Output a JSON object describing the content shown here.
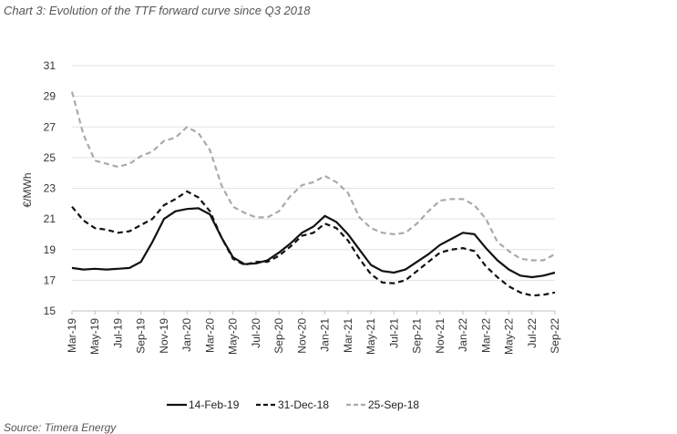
{
  "caption": "Chart 3: Evolution of the TTF forward curve since Q3 2018",
  "source": "Source: Timera Energy",
  "chart_data": {
    "type": "line",
    "title": "Chart 3: Evolution of the TTF forward curve since Q3 2018",
    "ylabel": "€/MWh",
    "xlabel": "",
    "ylim": [
      15,
      31
    ],
    "yticks": [
      15,
      17,
      19,
      21,
      23,
      25,
      27,
      29,
      31
    ],
    "grid": "horizontal",
    "legend_position": "bottom",
    "x": [
      "Mar-19",
      "Apr-19",
      "May-19",
      "Jun-19",
      "Jul-19",
      "Aug-19",
      "Sep-19",
      "Oct-19",
      "Nov-19",
      "Dec-19",
      "Jan-20",
      "Feb-20",
      "Mar-20",
      "Apr-20",
      "May-20",
      "Jun-20",
      "Jul-20",
      "Aug-20",
      "Sep-20",
      "Oct-20",
      "Nov-20",
      "Dec-20",
      "Jan-21",
      "Feb-21",
      "Mar-21",
      "Apr-21",
      "May-21",
      "Jun-21",
      "Jul-21",
      "Aug-21",
      "Sep-21",
      "Oct-21",
      "Nov-21",
      "Dec-21",
      "Jan-22",
      "Feb-22",
      "Mar-22",
      "Apr-22",
      "May-22",
      "Jun-22",
      "Jul-22",
      "Aug-22",
      "Sep-22"
    ],
    "xtick_labels": [
      "Mar-19",
      "May-19",
      "Jul-19",
      "Sep-19",
      "Nov-19",
      "Jan-20",
      "Mar-20",
      "May-20",
      "Jul-20",
      "Sep-20",
      "Nov-20",
      "Jan-21",
      "Mar-21",
      "May-21",
      "Jul-21",
      "Sep-21",
      "Nov-21",
      "Jan-22",
      "Mar-22",
      "May-22",
      "Jul-22",
      "Sep-22"
    ],
    "series": [
      {
        "name": "14-Feb-19",
        "color": "#111111",
        "style": "solid",
        "values": [
          17.8,
          17.7,
          17.75,
          17.7,
          17.75,
          17.8,
          18.2,
          19.5,
          21.0,
          21.5,
          21.65,
          21.7,
          21.3,
          19.8,
          18.5,
          18.05,
          18.1,
          18.3,
          18.8,
          19.4,
          20.1,
          20.5,
          21.2,
          20.8,
          20.0,
          19.0,
          18.0,
          17.6,
          17.5,
          17.7,
          18.2,
          18.7,
          19.3,
          19.7,
          20.1,
          20.0,
          19.1,
          18.3,
          17.7,
          17.3,
          17.2,
          17.3,
          17.5
        ]
      },
      {
        "name": "31-Dec-18",
        "color": "#111111",
        "style": "dashed",
        "values": [
          21.8,
          20.9,
          20.4,
          20.3,
          20.1,
          20.2,
          20.6,
          21.0,
          21.9,
          22.3,
          22.8,
          22.4,
          21.5,
          19.8,
          18.4,
          18.0,
          18.2,
          18.2,
          18.6,
          19.2,
          19.9,
          20.1,
          20.7,
          20.4,
          19.6,
          18.4,
          17.4,
          16.85,
          16.8,
          17.0,
          17.6,
          18.2,
          18.8,
          19.0,
          19.1,
          18.9,
          17.9,
          17.2,
          16.6,
          16.2,
          16.0,
          16.05,
          16.2
        ]
      },
      {
        "name": "25-Sep-18",
        "color": "#aaaaaa",
        "style": "dashed",
        "values": [
          29.3,
          26.5,
          24.8,
          24.6,
          24.4,
          24.6,
          25.1,
          25.4,
          26.1,
          26.3,
          27.0,
          26.6,
          25.5,
          23.2,
          21.8,
          21.4,
          21.1,
          21.1,
          21.5,
          22.5,
          23.2,
          23.4,
          23.8,
          23.4,
          22.7,
          21.1,
          20.4,
          20.1,
          20.0,
          20.1,
          20.7,
          21.5,
          22.2,
          22.3,
          22.3,
          21.9,
          21.0,
          19.5,
          18.9,
          18.4,
          18.3,
          18.3,
          18.7
        ]
      }
    ]
  }
}
